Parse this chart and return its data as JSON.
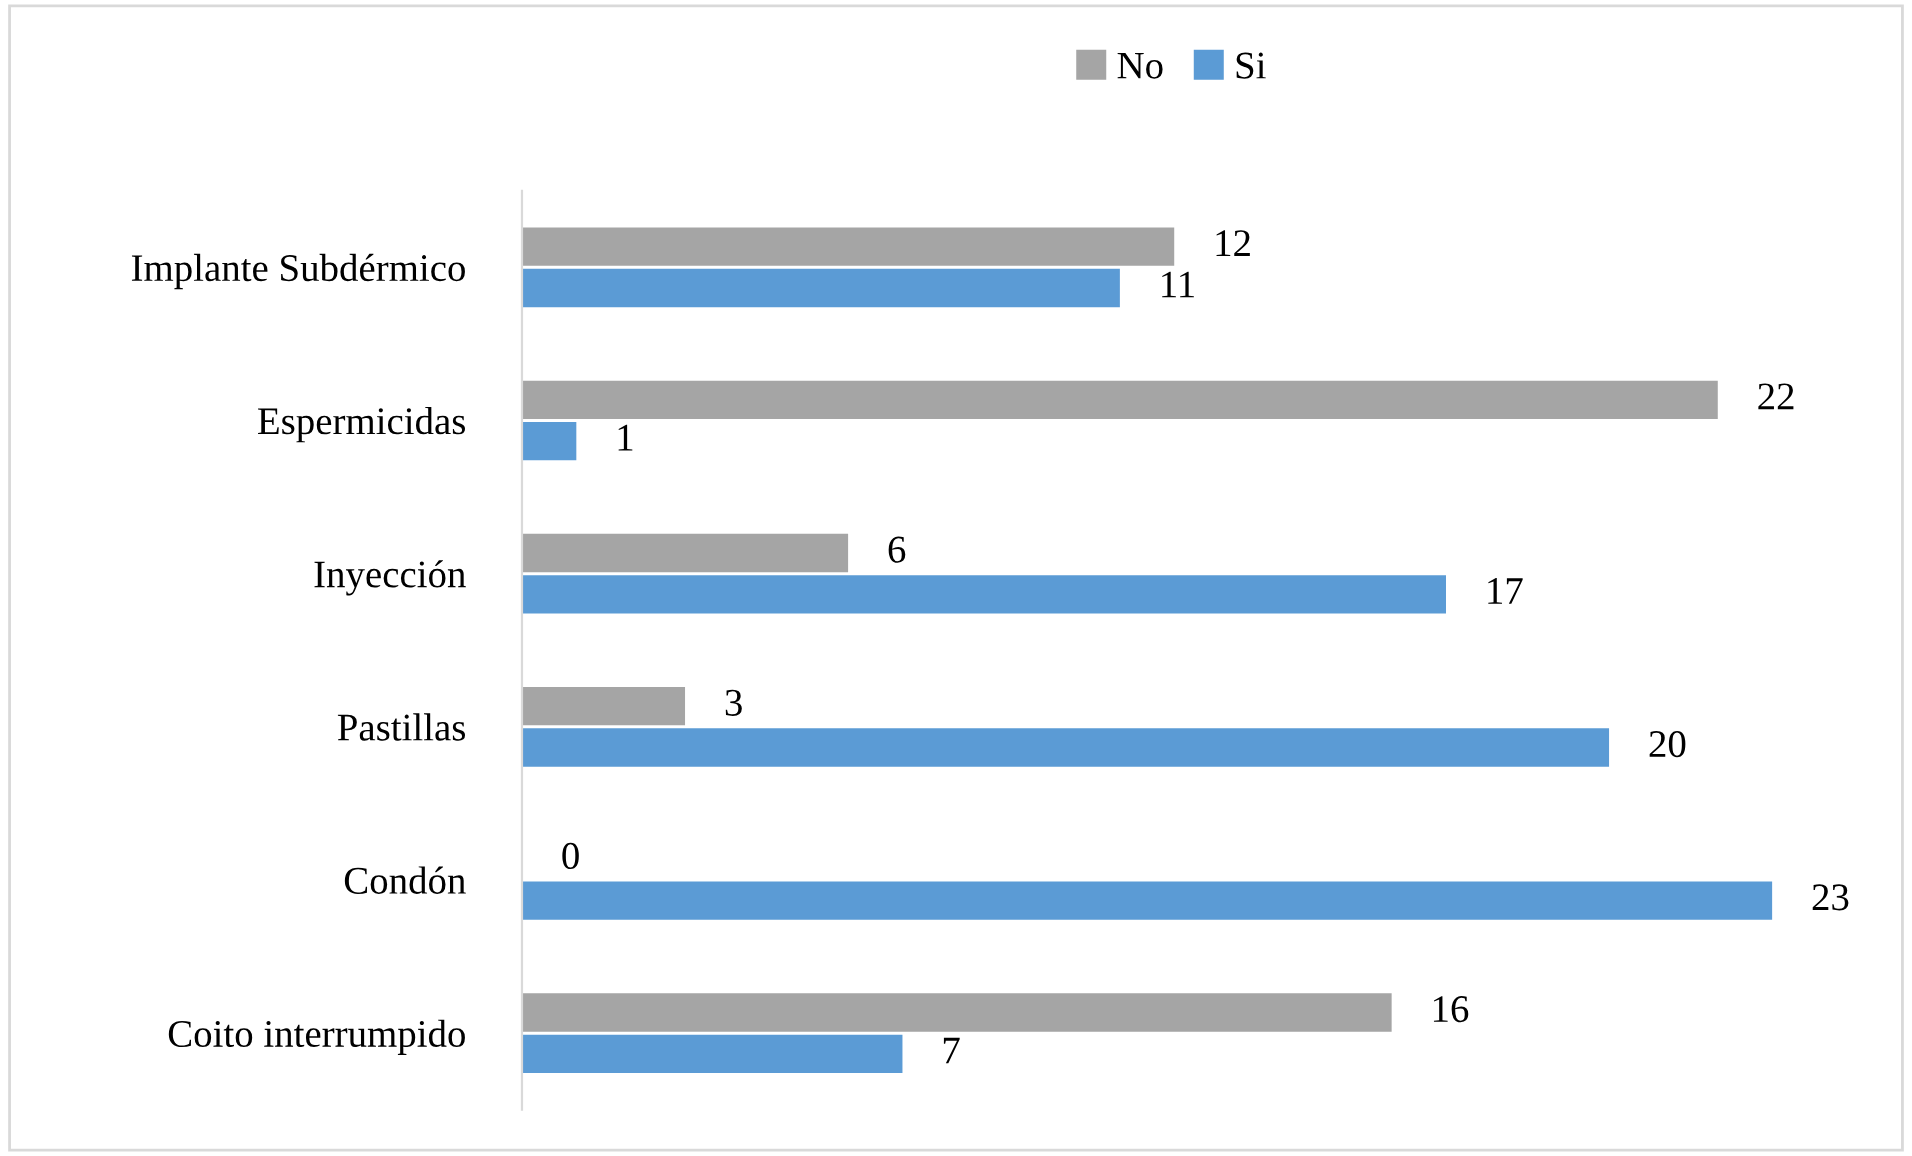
{
  "chart_data": {
    "type": "bar",
    "orientation": "horizontal",
    "categories": [
      "Implante Subdérmico",
      "Espermicidas",
      "Inyección",
      "Pastillas",
      "Condón",
      "Coito interrumpido"
    ],
    "series": [
      {
        "name": "No",
        "color": "#a5a5a5",
        "values": [
          12,
          22,
          6,
          3,
          0,
          16
        ]
      },
      {
        "name": "Si",
        "color": "#5b9bd5",
        "values": [
          11,
          1,
          17,
          20,
          23,
          7
        ]
      }
    ],
    "data_labels": true,
    "legend": "top",
    "tick_labels": "y"
  }
}
